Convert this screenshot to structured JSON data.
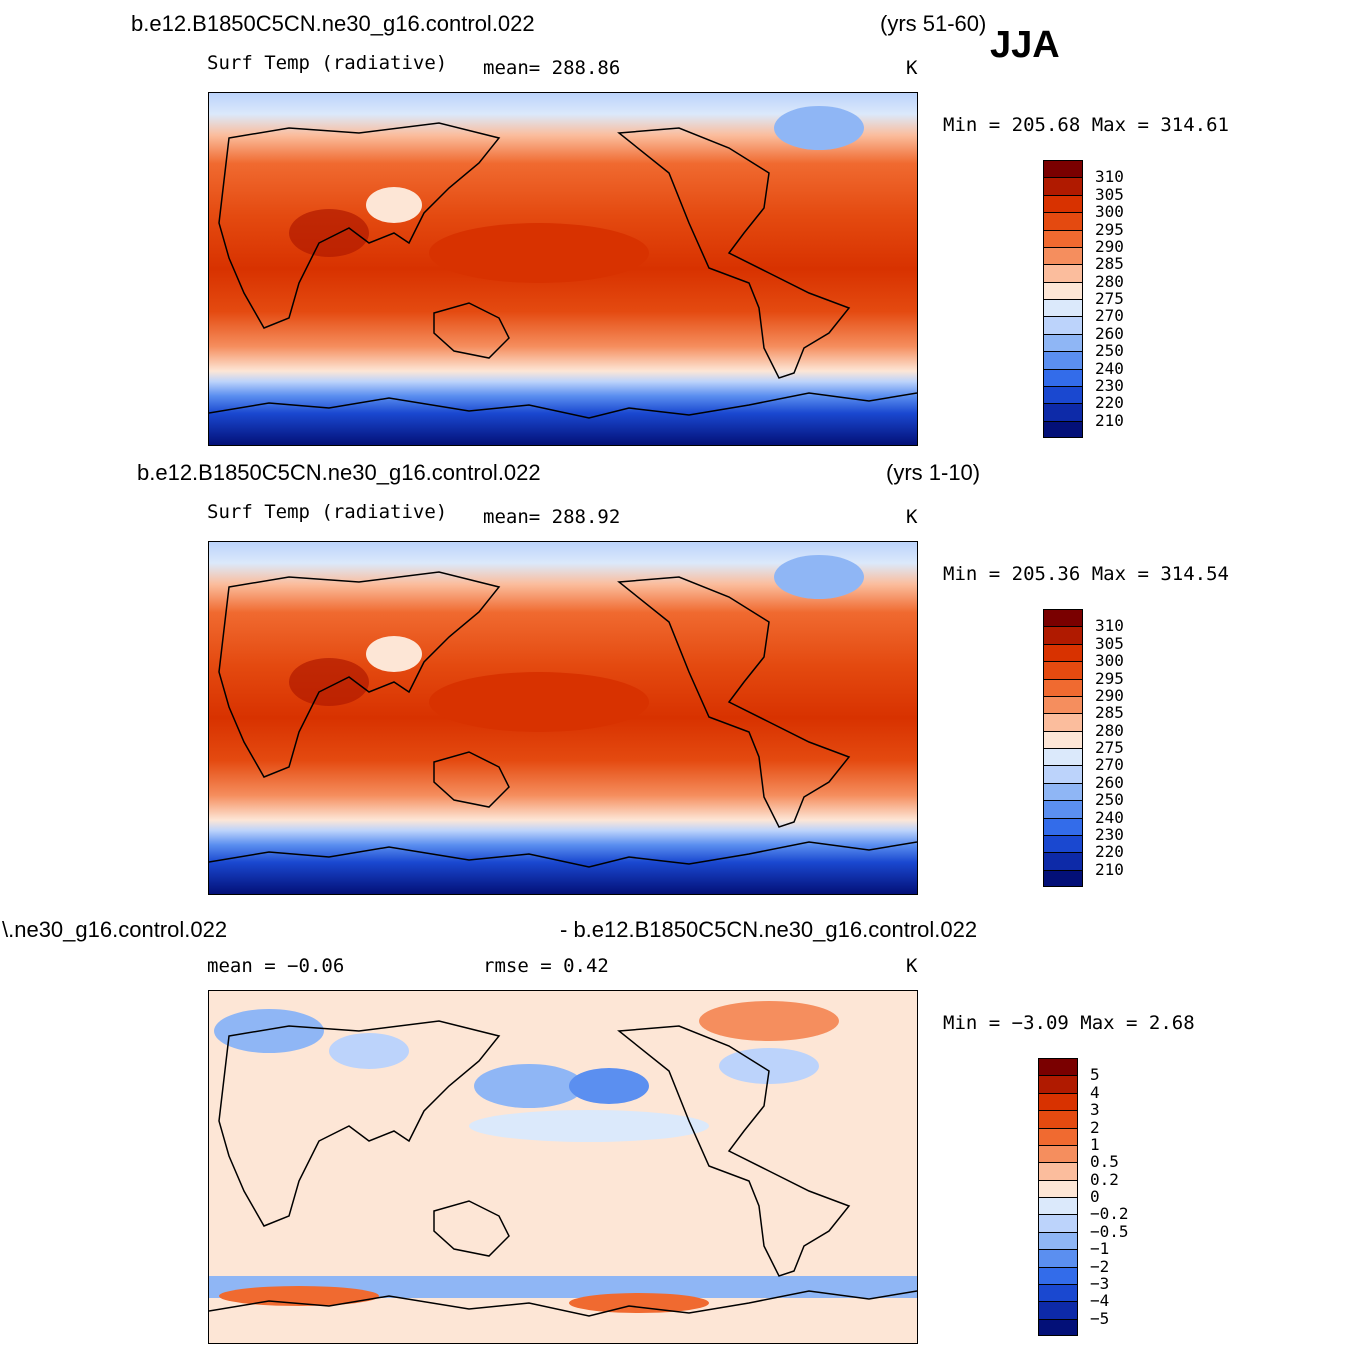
{
  "season": "JJA",
  "panels": [
    {
      "case_title": "b.e12.B1850C5CN.ne30_g16.control.022",
      "years": "(yrs 51-60)",
      "variable": "Surf Temp (radiative)",
      "stat1": "mean=  288.86",
      "stat2": "",
      "units": "K",
      "minmax": "Min  =  205.68  Max  =  314.61",
      "colorbar": {
        "labels": [
          "310",
          "305",
          "300",
          "295",
          "290",
          "285",
          "280",
          "275",
          "270",
          "260",
          "250",
          "240",
          "230",
          "220",
          "210"
        ],
        "colors": [
          "#7a0000",
          "#b01a00",
          "#d83200",
          "#e44a10",
          "#f06a30",
          "#f58e5e",
          "#fbbd9d",
          "#fde6d6",
          "#dbe9fb",
          "#bcd3fb",
          "#8fb6f5",
          "#5b8ff0",
          "#336cea",
          "#1a48d0",
          "#0d2aa8",
          "#031078"
        ]
      }
    },
    {
      "case_title": "b.e12.B1850C5CN.ne30_g16.control.022",
      "years": "(yrs 1-10)",
      "variable": "Surf Temp (radiative)",
      "stat1": "mean=  288.92",
      "stat2": "",
      "units": "K",
      "minmax": "Min  =  205.36  Max  =  314.54",
      "colorbar": {
        "labels": [
          "310",
          "305",
          "300",
          "295",
          "290",
          "285",
          "280",
          "275",
          "270",
          "260",
          "250",
          "240",
          "230",
          "220",
          "210"
        ],
        "colors": [
          "#7a0000",
          "#b01a00",
          "#d83200",
          "#e44a10",
          "#f06a30",
          "#f58e5e",
          "#fbbd9d",
          "#fde6d6",
          "#dbe9fb",
          "#bcd3fb",
          "#8fb6f5",
          "#5b8ff0",
          "#336cea",
          "#1a48d0",
          "#0d2aa8",
          "#031078"
        ]
      }
    },
    {
      "case_title_left": "\\.ne30_g16.control.022",
      "case_title_right": "- b.e12.B1850C5CN.ne30_g16.control.022",
      "stat1": "mean =   −0.06",
      "stat2": "rmse =    0.42",
      "units": "K",
      "minmax": "Min  =   −3.09  Max  =     2.68",
      "colorbar": {
        "labels": [
          "5",
          "4",
          "3",
          "2",
          "1",
          "0.5",
          "0.2",
          "0",
          "−0.2",
          "−0.5",
          "−1",
          "−2",
          "−3",
          "−4",
          "−5"
        ],
        "colors": [
          "#7a0000",
          "#b01a00",
          "#d83200",
          "#e44a10",
          "#f06a30",
          "#f58e5e",
          "#fbbd9d",
          "#fde6d6",
          "#dbe9fb",
          "#bcd3fb",
          "#8fb6f5",
          "#5b8ff0",
          "#336cea",
          "#1a48d0",
          "#0d2aa8",
          "#031078"
        ]
      }
    }
  ]
}
